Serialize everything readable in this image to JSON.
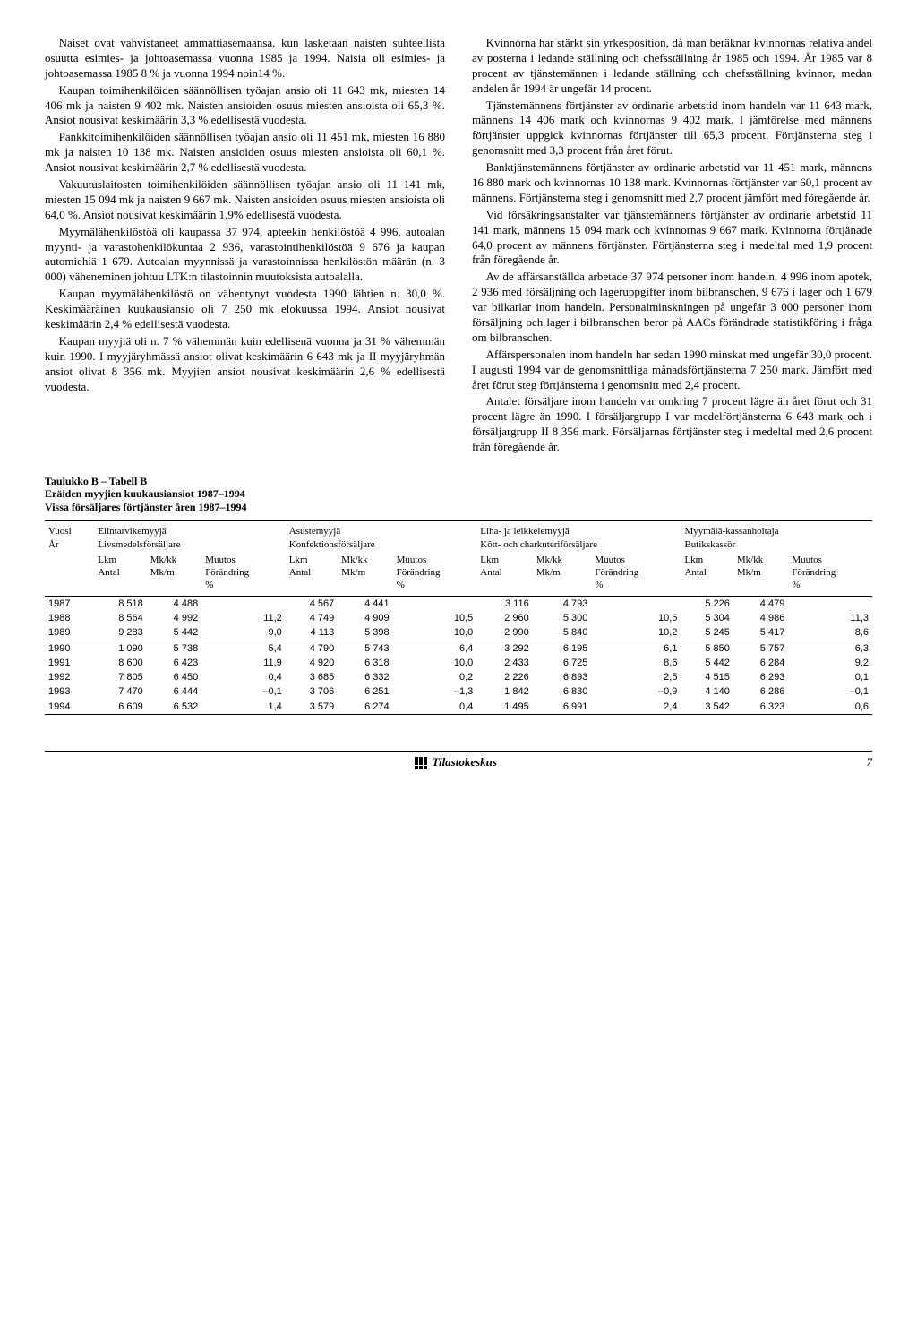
{
  "left_paragraphs": [
    "Naiset ovat vahvistaneet ammattiasemaansa, kun lasketaan naisten suhteellista osuutta esimies- ja johtoasemassa vuonna 1985 ja 1994. Naisia oli esimies- ja johtoasemassa 1985 8 % ja vuonna 1994 noin14 %.",
    "Kaupan toimihenkilöiden säännöllisen työajan ansio oli 11 643 mk, miesten 14 406 mk ja naisten 9 402 mk. Naisten ansioiden osuus miesten ansioista oli 65,3 %. Ansiot nousivat keskimäärin 3,3 % edellisestä vuodesta.",
    "Pankkitoimihenkilöiden säännöllisen työajan ansio oli 11 451 mk, miesten 16 880 mk ja naisten 10 138 mk. Naisten ansioiden osuus miesten ansioista oli 60,1 %. Ansiot nousivat keskimäärin 2,7 % edellisestä vuodesta.",
    "Vakuutuslaitosten toimihenkilöiden säännöllisen työajan ansio oli 11 141 mk, miesten 15 094 mk ja naisten 9 667 mk. Naisten ansioiden osuus miesten ansioista oli 64,0 %. Ansiot nousivat keskimäärin 1,9% edellisestä vuodesta.",
    "Myymälähenkilöstöä oli kaupassa 37 974, apteekin henkilöstöä 4 996, autoalan myynti- ja varastohenkilökuntaa 2 936, varastointihenkilöstöä 9 676 ja kaupan automiehiä 1 679. Autoalan myynnissä ja varastoinnissa henkilöstön määrän (n. 3 000) väheneminen johtuu LTK:n tilastoinnin muutoksista autoalalla.",
    "Kaupan myymälähenkilöstö on vähentynyt vuodesta 1990 lähtien n. 30,0 %. Keskimääräinen kuukausiansio oli 7 250 mk elokuussa 1994. Ansiot nousivat keskimäärin 2,4 % edellisestä vuodesta.",
    "Kaupan myyjiä oli n. 7 % vähemmän kuin edellisenä vuonna ja 31 % vähemmän kuin 1990. I myyjäryhmässä ansiot olivat keskimäärin 6 643 mk ja II myyjäryhmän ansiot olivat 8 356 mk. Myyjien ansiot nousivat keskimäärin 2,6 % edellisestä vuodesta."
  ],
  "right_paragraphs": [
    "Kvinnorna har stärkt sin yrkesposition, då man beräknar kvinnornas relativa andel av posterna i ledande ställning och chefsställning år 1985 och 1994. År 1985 var 8 procent av tjänstemännen i ledande ställning och chefsställning kvinnor, medan andelen år 1994 är ungefär 14 procent.",
    "Tjänstemännens förtjänster av ordinarie arbetstid inom handeln var 11 643 mark, männens 14 406 mark och kvinnornas 9 402 mark. I jämförelse med männens förtjänster uppgick kvinnornas förtjänster till 65,3 procent. Förtjänsterna steg i genomsnitt med 3,3 procent från året förut.",
    "Banktjänstemännens förtjänster av ordinarie arbetstid var 11 451 mark, männens 16 880 mark och kvinnornas 10 138 mark. Kvinnornas förtjänster var 60,1 procent av männens. Förtjänsterna steg i genomsnitt med 2,7 procent jämfört med föregående år.",
    "Vid försäkringsanstalter var tjänstemännens förtjänster av ordinarie arbetstid 11 141 mark, männens 15 094 mark och kvinnornas 9 667 mark. Kvinnorna förtjänade 64,0 procent av männens förtjänster. Förtjänsterna steg i medeltal med 1,9 procent från föregående år.",
    "Av de affärsanställda arbetade 37 974 personer inom handeln, 4 996 inom apotek, 2 936 med försäljning och lageruppgifter inom bilbranschen, 9 676 i lager och 1 679 var bilkarlar inom handeln. Personalminskningen på ungefär 3 000 personer inom försäljning och lager i bilbranschen beror på AACs förändrade statistikföring i fråga om bilbranschen.",
    "Affärspersonalen inom handeln har sedan 1990 minskat med ungefär 30,0 procent. I augusti 1994 var de genomsnittliga månadsförtjänsterna 7 250 mark. Jämfört med året förut steg förtjänsterna i genomsnitt med 2,4 procent.",
    "Antalet försäljare inom handeln var omkring 7 procent lägre än året förut och 31 procent lägre än 1990. I försäljargrupp I var medelförtjänsterna 6 643 mark och i försäljargrupp II 8 356 mark. Försäljarnas förtjänster steg i medeltal med 2,6 procent från föregående år."
  ],
  "table": {
    "title_lines": [
      "Taulukko B – Tabell B",
      "Eräiden myyjien kuukausiansiot 1987–1994",
      "Vissa försäljares förtjänster åren 1987–1994"
    ],
    "groups": [
      {
        "fi": "Elintarvikemyyjä",
        "sv": "Livsmedelsförsäljare"
      },
      {
        "fi": "Asustemyyjä",
        "sv": "Konfektionsförsäljare"
      },
      {
        "fi": "Liha- ja leikkelemyyjä",
        "sv": "Kött- och charkuteriförsäljare"
      },
      {
        "fi": "Myymälä-kassanhoitaja",
        "sv": "Butikskassör"
      }
    ],
    "year_label": {
      "fi": "Vuosi",
      "sv": "År"
    },
    "sub_cols": [
      {
        "l1": "Lkm",
        "l2": "Antal"
      },
      {
        "l1": "Mk/kk",
        "l2": "Mk/m"
      },
      {
        "l1": "Muutos",
        "l2": "Förändring",
        "l3": "%"
      }
    ],
    "rows": [
      {
        "year": "1987",
        "cells": [
          "8 518",
          "4 488",
          "",
          "4 567",
          "4 441",
          "",
          "3 116",
          "4 793",
          "",
          "5 226",
          "4 479",
          ""
        ]
      },
      {
        "year": "1988",
        "cells": [
          "8 564",
          "4 992",
          "11,2",
          "4 749",
          "4 909",
          "10,5",
          "2 960",
          "5 300",
          "10,6",
          "5 304",
          "4 986",
          "11,3"
        ]
      },
      {
        "year": "1989",
        "cells": [
          "9 283",
          "5 442",
          "9,0",
          "4 113",
          "5 398",
          "10,0",
          "2 990",
          "5 840",
          "10,2",
          "5 245",
          "5 417",
          "8,6"
        ]
      },
      {
        "year": "1990",
        "cells": [
          "1 090",
          "5 738",
          "5,4",
          "4 790",
          "5 743",
          "6,4",
          "3 292",
          "6 195",
          "6,1",
          "5 850",
          "5 757",
          "6,3"
        ],
        "rule": true
      },
      {
        "year": "1991",
        "cells": [
          "8 600",
          "6 423",
          "11,9",
          "4 920",
          "6 318",
          "10,0",
          "2 433",
          "6 725",
          "8,6",
          "5 442",
          "6 284",
          "9,2"
        ]
      },
      {
        "year": "1992",
        "cells": [
          "7 805",
          "6 450",
          "0,4",
          "3 685",
          "6 332",
          "0,2",
          "2 226",
          "6 893",
          "2,5",
          "4 515",
          "6 293",
          "0,1"
        ]
      },
      {
        "year": "1993",
        "cells": [
          "7 470",
          "6 444",
          "–0,1",
          "3 706",
          "6 251",
          "–1,3",
          "1 842",
          "6 830",
          "–0,9",
          "4 140",
          "6 286",
          "–0,1"
        ]
      },
      {
        "year": "1994",
        "cells": [
          "6 609",
          "6 532",
          "1,4",
          "3 579",
          "6 274",
          "0,4",
          "1 495",
          "6 991",
          "2,4",
          "3 542",
          "6 323",
          "0,6"
        ]
      }
    ]
  },
  "footer": {
    "brand": "Tilastokeskus",
    "page": "7"
  }
}
